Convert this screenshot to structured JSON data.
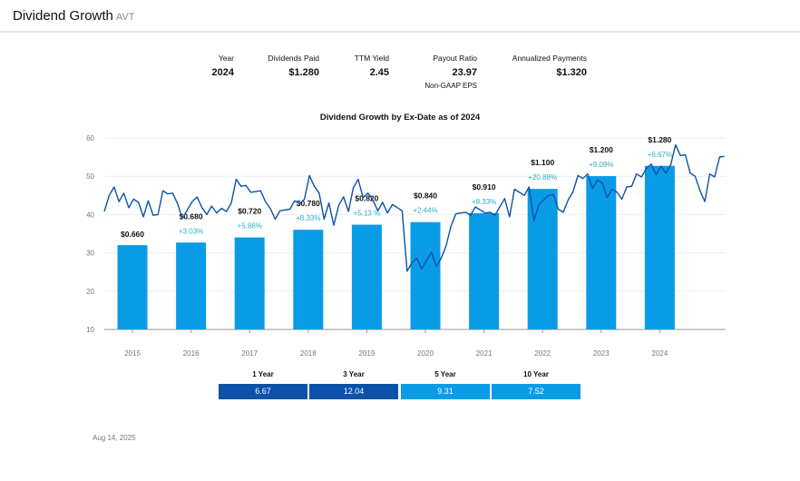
{
  "header": {
    "title": "Dividend Growth",
    "ticker": "AVT"
  },
  "summary": [
    {
      "label": "Year",
      "value": "2024"
    },
    {
      "label": "Dividends Paid",
      "value": "$1.280"
    },
    {
      "label": "TTM Yield",
      "value": "2.45"
    },
    {
      "label": "Payout Ratio",
      "value": "23.97",
      "sub": "Non-GAAP EPS"
    },
    {
      "label": "Annualized Payments",
      "value": "$1.320"
    }
  ],
  "periods": [
    {
      "label": "1 Year",
      "value": "6.67",
      "color": "#0b52a8"
    },
    {
      "label": "3 Year",
      "value": "12.04",
      "color": "#0b52a8"
    },
    {
      "label": "5 Year",
      "value": "9.31",
      "color": "#0a9be6"
    },
    {
      "label": "10 Year",
      "value": "7.52",
      "color": "#0a9be6"
    }
  ],
  "date": "Aug 14, 2025",
  "chart_data": {
    "type": "bar",
    "title": "Dividend Growth by Ex-Date as of 2024",
    "categories": [
      "2015",
      "2016",
      "2017",
      "2018",
      "2019",
      "2020",
      "2021",
      "2022",
      "2023",
      "2024"
    ],
    "series": [
      {
        "values": [
          0.66,
          0.68,
          0.72,
          0.78,
          0.82,
          0.84,
          0.91,
          1.1,
          1.2,
          1.28
        ],
        "labels": [
          "$0.660",
          "$0.680",
          "$0.720",
          "$0.780",
          "$0.820",
          "$0.840",
          "$0.910",
          "$1.100",
          "$1.200",
          "$1.280"
        ],
        "growth": [
          "",
          "+3.03%",
          "+5.88%",
          "+8.33%",
          "+5.13 %",
          "+2.44%",
          "+8.33%",
          "+20.88%",
          "+9.09%",
          "+6.67%"
        ]
      }
    ],
    "price_line": {
      "type": "line",
      "start": "2015-01",
      "interval": "month",
      "values": [
        42,
        45,
        46,
        44,
        45,
        43,
        44,
        42,
        40,
        43,
        41,
        40,
        45,
        46,
        45,
        44,
        39,
        40,
        44,
        44,
        43,
        40,
        41,
        41,
        41,
        42,
        43,
        48,
        48,
        47,
        47,
        46,
        45,
        44,
        41,
        40,
        41,
        40,
        42,
        43,
        44,
        44,
        49,
        48,
        45,
        40,
        43,
        36,
        43,
        44,
        42,
        47,
        48,
        45,
        45,
        45,
        41,
        42,
        41,
        42,
        43,
        41,
        24,
        28,
        28,
        27,
        28,
        29,
        27,
        28,
        33,
        37,
        39,
        41,
        40,
        41,
        42,
        40,
        41,
        40,
        41,
        42,
        43,
        40,
        46,
        47,
        45,
        46,
        39,
        42,
        45,
        45,
        44,
        42,
        40,
        45,
        46,
        49,
        50,
        50,
        48,
        49,
        47,
        45,
        46,
        47,
        44,
        46,
        48,
        50,
        51,
        52,
        52,
        51,
        52,
        52,
        53,
        57,
        56,
        55,
        52,
        50,
        45,
        44,
        50,
        51,
        55,
        54
      ]
    },
    "yticks": [
      10,
      20,
      30,
      40,
      50,
      60
    ],
    "ylim": [
      10,
      60
    ],
    "grid": true,
    "colors": {
      "bar": "#0a9be6",
      "line": "#0b52a8",
      "growth": "#2bb0c4"
    }
  }
}
